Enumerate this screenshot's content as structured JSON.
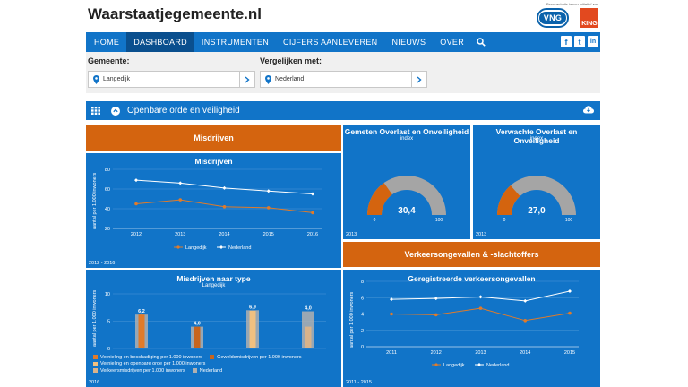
{
  "header": {
    "site_title": "Waarstaatjegemeente.nl",
    "initiative_text": "Deze website is een initiatief van",
    "logo_vng": "VNG",
    "logo_king": "KING"
  },
  "nav": {
    "items": [
      {
        "label": "HOME"
      },
      {
        "label": "DASHBOARD"
      },
      {
        "label": "INSTRUMENTEN"
      },
      {
        "label": "CIJFERS AANLEVEREN"
      },
      {
        "label": "NIEUWS"
      },
      {
        "label": "OVER"
      }
    ],
    "active": "DASHBOARD",
    "social": [
      "facebook-icon",
      "twitter-icon",
      "linkedin-icon"
    ],
    "social_glyphs": {
      "facebook": "f",
      "twitter": "t",
      "linkedin": "in"
    }
  },
  "filters": {
    "gemeente_label": "Gemeente:",
    "gemeente_value": "Langedijk",
    "vergelijken_label": "Vergelijken met:",
    "vergelijken_value": "Nederland"
  },
  "section": {
    "title": "Openbare orde en veiligheid"
  },
  "panels": {
    "misdrijven_header": "Misdrijven",
    "misdrijven_title": "Misdrijven",
    "misdrijven_ylabel": "aantal per 1.000 inwoners",
    "misdrijven_period": "2012 - 2016",
    "overlast_gemeten_title": "Gemeten Overlast en Onveiligheid",
    "overlast_gemeten_sub": "index",
    "overlast_gemeten_year": "2013",
    "overlast_verwacht_title": "Verwachte Overlast en Onveiligheid",
    "overlast_verwacht_sub": "index",
    "overlast_verwacht_year": "2013",
    "type_title": "Misdrijven naar type",
    "type_sub": "Langedijk",
    "type_ylabel": "aantal per 1.000 inwoners",
    "type_year": "2016",
    "verkeer_header": "Verkeersongevallen & -slachtoffers",
    "verkeer_title": "Geregistreerde verkeersongevallen",
    "verkeer_ylabel": "aantal per 1.000 inwoners",
    "verkeer_period": "2011 - 2015"
  },
  "colors": {
    "blue": "#1174c8",
    "dark_blue": "#0a4f8e",
    "orange": "#d4640f",
    "grey_gauge": "#a5a5a5",
    "langedijk": "#e07b2a",
    "nederland": "#ffffff"
  },
  "chart_data": [
    {
      "type": "line",
      "title": "Misdrijven",
      "ylabel": "aantal per 1.000 inwoners",
      "x": [
        "2012",
        "2013",
        "2014",
        "2015",
        "2016"
      ],
      "yticks": [
        20,
        40,
        60,
        80
      ],
      "ylim": [
        20,
        80
      ],
      "series": [
        {
          "name": "Langedijk",
          "values": [
            45,
            49,
            42,
            41,
            36
          ]
        },
        {
          "name": "Nederland",
          "values": [
            69,
            66,
            61,
            58,
            55
          ]
        }
      ],
      "legend_placement": "bottom"
    },
    {
      "type": "gauge",
      "title": "Gemeten Overlast en Onveiligheid",
      "value": 30.4,
      "value_label": "30,4",
      "min_label": "0",
      "max_label": "100",
      "range": [
        0,
        100
      ]
    },
    {
      "type": "gauge",
      "title": "Verwachte Overlast en Onveiligheid",
      "value": 27.0,
      "value_label": "27,0",
      "min_label": "0",
      "max_label": "100",
      "range": [
        0,
        100
      ]
    },
    {
      "type": "bar",
      "title": "Misdrijven naar type",
      "subtitle": "Langedijk",
      "ylabel": "aantal per 1.000 inwoners",
      "yticks": [
        0,
        5,
        10
      ],
      "ylim": [
        0,
        10
      ],
      "categories": [
        "Vernieling en beschadiging per 1.000 inwoners",
        "Geweldsmisdrijven per 1.000 inwoners",
        "Vernieling en openbare orde per 1.000 inwoners",
        "Verkeersmisdrijven per 1.000 inwoners"
      ],
      "series": [
        {
          "name": "Langedijk",
          "values": [
            6.2,
            4.0,
            6.9,
            4.0
          ]
        },
        {
          "name": "Nederland",
          "values": [
            6.2,
            4.0,
            7.0,
            6.8
          ]
        }
      ],
      "data_labels": [
        "6,2",
        "4,0",
        "6,9",
        "4,0"
      ],
      "legend_items": [
        "Vernieling en beschadiging per 1.000 inwoners",
        "Geweldsmisdrijven per 1.000 inwoners",
        "Vernieling en openbare orde per 1.000 inwoners",
        "Nederland",
        "Verkeersmisdrijven per 1.000 inwoners"
      ]
    },
    {
      "type": "line",
      "title": "Geregistreerde verkeersongevallen",
      "ylabel": "aantal per 1.000 inwoners",
      "x": [
        "2011",
        "2012",
        "2013",
        "2014",
        "2015"
      ],
      "yticks": [
        0,
        2,
        4,
        6,
        8
      ],
      "ylim": [
        0,
        8
      ],
      "series": [
        {
          "name": "Langedijk",
          "values": [
            4.0,
            3.9,
            4.7,
            3.2,
            4.1
          ]
        },
        {
          "name": "Nederland",
          "values": [
            5.8,
            5.9,
            6.1,
            5.6,
            6.8
          ]
        }
      ],
      "legend_placement": "bottom"
    }
  ]
}
